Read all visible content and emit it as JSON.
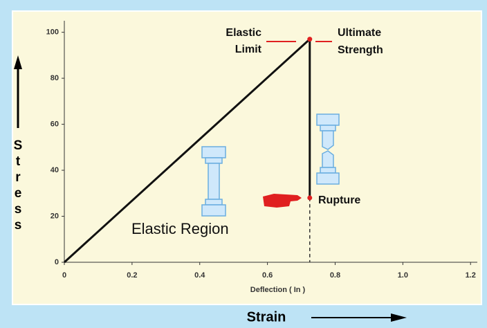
{
  "chart_data": {
    "type": "line",
    "x": [
      0,
      0.725,
      0.725
    ],
    "values": [
      0,
      97,
      28
    ],
    "color": "#111111",
    "xlim": [
      0,
      1.22
    ],
    "ylim": [
      0,
      105
    ],
    "xticks": [
      0,
      0.2,
      0.4,
      0.6,
      0.8,
      {
        "value": 1,
        "label": "1.0"
      },
      1.2
    ],
    "yticks": [
      0,
      20,
      40,
      60,
      80,
      100
    ],
    "x_label": "Deflection ( In )",
    "x_title": "Strain",
    "y_title": "Stress",
    "annotations": [
      {
        "lines": [
          "Elastic",
          "Limit"
        ]
      },
      {
        "lines": [
          "Ultimate",
          "Strength"
        ]
      },
      {
        "lines": [
          "Rupture"
        ]
      },
      {
        "lines": [
          "Elastic Region"
        ]
      }
    ]
  }
}
